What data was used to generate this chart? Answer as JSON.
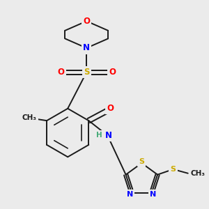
{
  "bg_color": "#ebebeb",
  "bond_color": "#1a1a1a",
  "atom_colors": {
    "O": "#ff0000",
    "N": "#0000ff",
    "S": "#ccaa00",
    "C": "#1a1a1a",
    "H": "#44aa77"
  },
  "lw": 1.4,
  "fs": 8.5
}
